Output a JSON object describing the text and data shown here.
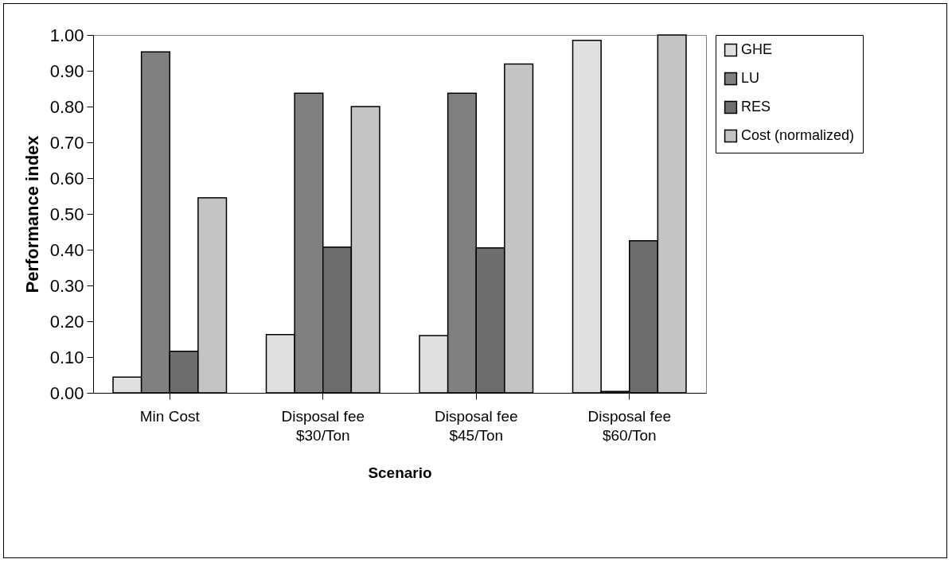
{
  "chart_data": {
    "type": "bar",
    "xlabel": "Scenario",
    "ylabel": "Performance index",
    "categories": [
      "Min Cost",
      "Disposal fee\n$30/Ton",
      "Disposal fee\n$45/Ton",
      "Disposal fee\n$60/Ton"
    ],
    "series": [
      {
        "name": "GHE",
        "color": "#e0e0e0",
        "values": [
          0.044,
          0.163,
          0.16,
          0.985
        ]
      },
      {
        "name": "LU",
        "color": "#808080",
        "values": [
          0.953,
          0.837,
          0.837,
          0.004
        ]
      },
      {
        "name": "RES",
        "color": "#6e6e6e",
        "values": [
          0.116,
          0.407,
          0.405,
          0.425
        ]
      },
      {
        "name": "Cost (normalized)",
        "color": "#c4c4c4",
        "values": [
          0.545,
          0.8,
          0.919,
          1.0
        ]
      }
    ],
    "ylim": [
      0,
      1
    ],
    "yticks": [
      {
        "value": 0,
        "label": "0.00"
      },
      {
        "value": 0.1,
        "label": "0.10"
      },
      {
        "value": 0.2,
        "label": "0.20"
      },
      {
        "value": 0.3,
        "label": "0.30"
      },
      {
        "value": 0.4,
        "label": "0.40"
      },
      {
        "value": 0.5,
        "label": "0.50"
      },
      {
        "value": 0.6,
        "label": "0.60"
      },
      {
        "value": 0.7,
        "label": "0.70"
      },
      {
        "value": 0.8,
        "label": "0.80"
      },
      {
        "value": 0.9,
        "label": "0.90"
      },
      {
        "value": 1,
        "label": "1.00"
      }
    ],
    "grid": false,
    "legend": "right"
  }
}
